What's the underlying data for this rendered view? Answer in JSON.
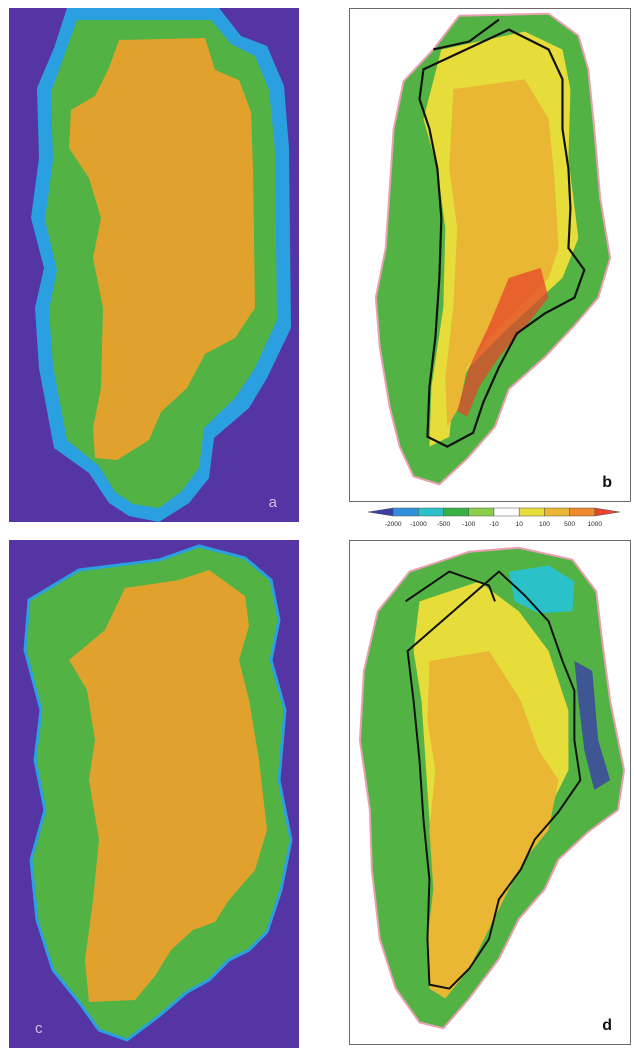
{
  "panels": {
    "a": {
      "label": "a"
    },
    "b": {
      "label": "b"
    },
    "c": {
      "label": "c"
    },
    "d": {
      "label": "d"
    }
  },
  "colors": {
    "background": "#5535a3",
    "ice": "#e0a22c",
    "land": "#52b344",
    "margin": "#2aa0e0",
    "contour": "#111111",
    "coast": "#e8a0b0"
  },
  "colorbar": {
    "ticks": [
      "-2000",
      "-1000",
      "-500",
      "-100",
      "-10",
      "10",
      "100",
      "500",
      "1000"
    ],
    "colors": [
      "#3a3fa8",
      "#2f8fd8",
      "#2ac2c8",
      "#38b044",
      "#8ccd4a",
      "#ffffff",
      "#e6dc3a",
      "#e9b734",
      "#ef8a2c",
      "#e6452b"
    ]
  }
}
